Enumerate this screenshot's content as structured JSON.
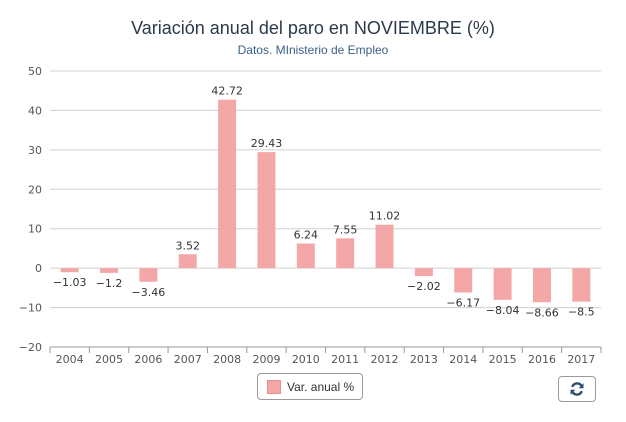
{
  "chart_data": {
    "type": "bar",
    "title": "Variación anual del paro en NOVIEMBRE (%)",
    "subtitle": "Datos. MInisterio de Empleo",
    "categories": [
      "2004",
      "2005",
      "2006",
      "2007",
      "2008",
      "2009",
      "2010",
      "2011",
      "2012",
      "2013",
      "2014",
      "2015",
      "2016",
      "2017"
    ],
    "series": [
      {
        "name": "Var. anual %",
        "values": [
          -1.03,
          -1.2,
          -3.46,
          3.52,
          42.72,
          29.43,
          6.24,
          7.55,
          11.02,
          -2.02,
          -6.17,
          -8.04,
          -8.66,
          -8.5
        ],
        "labels": [
          "−1.03",
          "−1.2",
          "−3.46",
          "3.52",
          "42.72",
          "29.43",
          "6.24",
          "7.55",
          "11.02",
          "−2.02",
          "−6.17",
          "−8.04",
          "−8.66",
          "−8.5"
        ]
      }
    ],
    "ylim": [
      -20,
      50
    ],
    "yticks": [
      -20,
      -10,
      0,
      10,
      20,
      30,
      40,
      50
    ],
    "ytick_labels": [
      "−20",
      "−10",
      "0",
      "10",
      "20",
      "30",
      "40",
      "50"
    ],
    "grid": true,
    "legend": "bottom-center",
    "colors": {
      "bar": "#f4a7a7",
      "grid": "#d0d0d0",
      "axis": "#999999",
      "text": "#555555"
    }
  },
  "controls": {
    "refresh_icon": "refresh-icon"
  }
}
